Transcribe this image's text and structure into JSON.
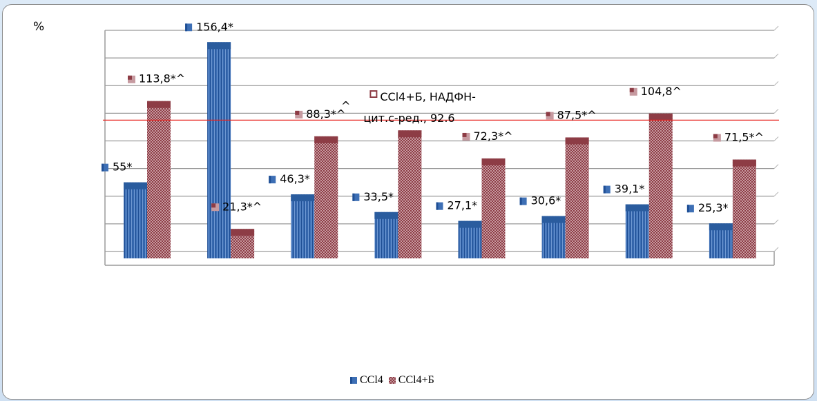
{
  "chart_data": {
    "type": "bar",
    "title": "",
    "ylabel": "%",
    "xlabel": "",
    "ylim": [
      0,
      165
    ],
    "grid": true,
    "legend_position": "bottom",
    "reference_line": {
      "value": 100,
      "color": "#e8231f"
    },
    "categories": [
      "",
      "",
      "",
      "",
      "",
      "",
      "",
      ""
    ],
    "series": [
      {
        "name": "CCl4",
        "color": "#3d6fb5",
        "values": [
          55,
          156.4,
          46.3,
          33.5,
          27.1,
          30.6,
          39.1,
          25.3
        ],
        "labels": [
          "55*",
          "156,4*",
          "46,3*",
          "33,5*",
          "27,1*",
          "30,6*",
          "39,1*",
          "25,3*"
        ]
      },
      {
        "name": "CCl4+Б",
        "color": "#a8575d",
        "values": [
          113.8,
          21.3,
          88.3,
          92.6,
          72.3,
          87.5,
          104.8,
          71.5
        ],
        "labels": [
          "113,8*^",
          "21,3*^",
          "88,3*^",
          "CCl4+Б, НАДФН-цит.с-ред., 92.6",
          "72,3*^",
          "87,5*^",
          "104,8^",
          "71,5*^"
        ]
      }
    ]
  },
  "misc": {
    "stray_caret": "^"
  }
}
